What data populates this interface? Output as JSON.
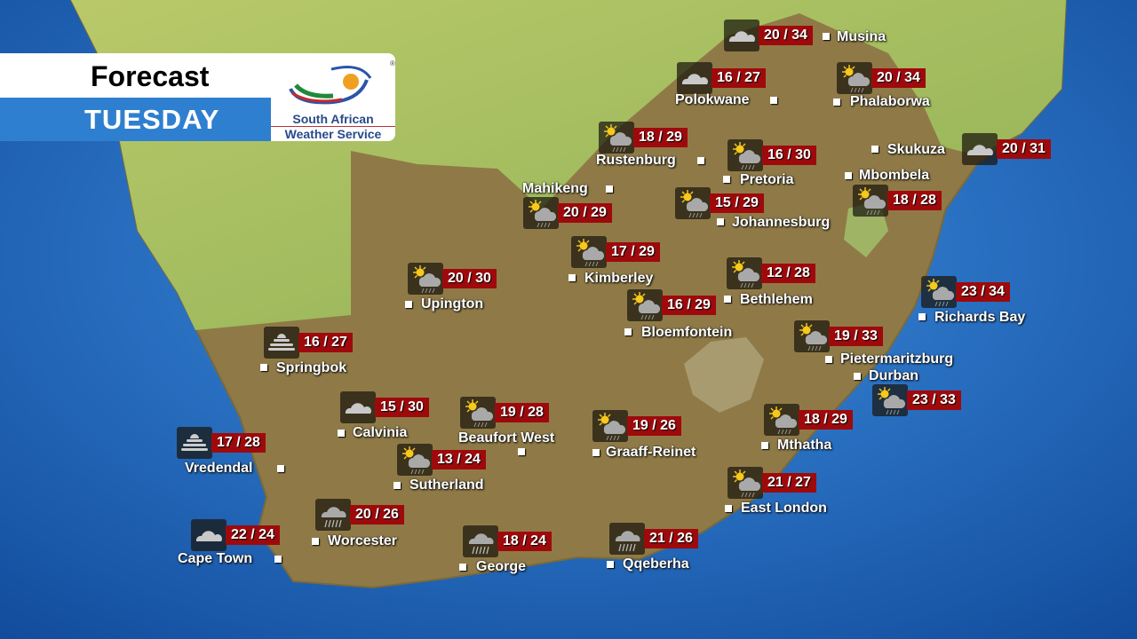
{
  "header": {
    "title": "Forecast",
    "day": "TUESDAY"
  },
  "logo": {
    "line1": "South African",
    "line2": "Weather Service",
    "registered": "®"
  },
  "colors": {
    "temp_box": "#9e0a0c",
    "header_blue": "#2f7fd0",
    "ocean": "#1d5fb0"
  },
  "cities": [
    {
      "name": "Musina",
      "temp": "20 / 34",
      "icon": "cloudy-icon"
    },
    {
      "name": "Polokwane",
      "temp": "16 / 27",
      "icon": "cloudy-icon"
    },
    {
      "name": "Phalaborwa",
      "temp": "20 / 34",
      "icon": "thunderstorm-icon"
    },
    {
      "name": "Rustenburg",
      "temp": "18 / 29",
      "icon": "thunderstorm-icon"
    },
    {
      "name": "Pretoria",
      "temp": "16 / 30",
      "icon": "thunderstorm-icon"
    },
    {
      "name": "Skukuza",
      "temp": "20 / 31",
      "icon": "cloudy-icon"
    },
    {
      "name": "Mbombela",
      "temp": "18 / 28",
      "icon": "thunderstorm-icon"
    },
    {
      "name": "Mahikeng",
      "temp": "20 / 29",
      "icon": "thunderstorm-icon"
    },
    {
      "name": "Johannesburg",
      "temp": "15 / 29",
      "icon": "thunderstorm-icon"
    },
    {
      "name": "Kimberley",
      "temp": "17 / 29",
      "icon": "thunderstorm-icon"
    },
    {
      "name": "Bethlehem",
      "temp": "12 / 28",
      "icon": "thunderstorm-icon"
    },
    {
      "name": "Upington",
      "temp": "20 / 30",
      "icon": "thunderstorm-icon"
    },
    {
      "name": "Richards Bay",
      "temp": "23 / 34",
      "icon": "thunderstorm-icon"
    },
    {
      "name": "Bloemfontein",
      "temp": "16 / 29",
      "icon": "thunderstorm-icon"
    },
    {
      "name": "Pietermaritzburg",
      "temp": "19 / 33",
      "icon": "thunderstorm-icon"
    },
    {
      "name": "Durban",
      "temp": "23 / 33",
      "icon": "thunderstorm-icon"
    },
    {
      "name": "Springbok",
      "temp": "16 / 27",
      "icon": "fog-icon"
    },
    {
      "name": "Calvinia",
      "temp": "15 / 30",
      "icon": "cloudy-icon"
    },
    {
      "name": "Beaufort West",
      "temp": "19 / 28",
      "icon": "thunderstorm-icon"
    },
    {
      "name": "Graaff-Reinet",
      "temp": "19 / 26",
      "icon": "thunderstorm-icon"
    },
    {
      "name": "Mthatha",
      "temp": "18 / 29",
      "icon": "thunderstorm-icon"
    },
    {
      "name": "Vredendal",
      "temp": "17 / 28",
      "icon": "fog-icon"
    },
    {
      "name": "Sutherland",
      "temp": "13 / 24",
      "icon": "thunderstorm-icon"
    },
    {
      "name": "East London",
      "temp": "21 / 27",
      "icon": "thunderstorm-icon"
    },
    {
      "name": "Worcester",
      "temp": "20 / 26",
      "icon": "rain-icon"
    },
    {
      "name": "Cape Town",
      "temp": "22 / 24",
      "icon": "cloudy-icon"
    },
    {
      "name": "George",
      "temp": "18 / 24",
      "icon": "rain-icon"
    },
    {
      "name": "Qqeberha",
      "temp": "21 / 26",
      "icon": "rain-icon"
    }
  ]
}
